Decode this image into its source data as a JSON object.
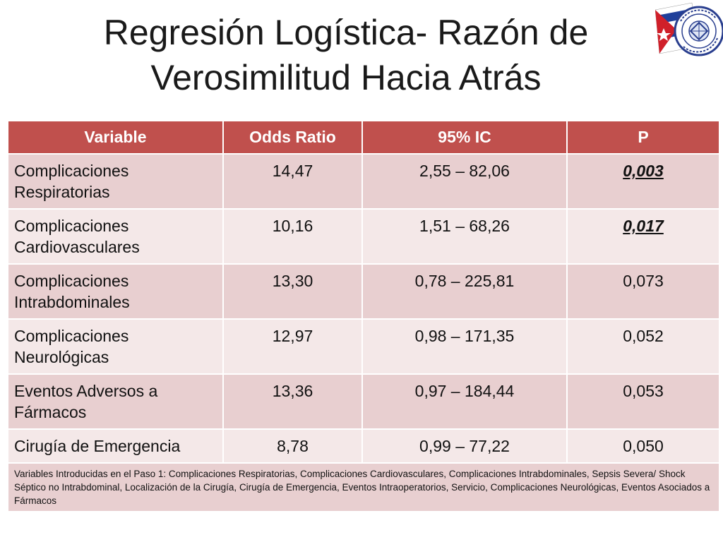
{
  "slide": {
    "title_line1": "Regresión Logística- Razón de",
    "title_line2": "Verosimilitud Hacia Atrás"
  },
  "table": {
    "headers": [
      "Variable",
      "Odds Ratio",
      "95% IC",
      "P"
    ],
    "rows": [
      {
        "variable_line1": "Complicaciones",
        "variable_line2": "Respiratorias",
        "odds_ratio": "14,47",
        "ic": "2,55 – 82,06",
        "p": "0,003",
        "significant": true
      },
      {
        "variable_line1": "Complicaciones",
        "variable_line2": "Cardiovasculares",
        "odds_ratio": "10,16",
        "ic": "1,51 – 68,26",
        "p": "0,017",
        "significant": true
      },
      {
        "variable_line1": "Complicaciones",
        "variable_line2": "Intrabdominales",
        "odds_ratio": "13,30",
        "ic": "0,78 – 225,81",
        "p": "0,073",
        "significant": false
      },
      {
        "variable_line1": "Complicaciones",
        "variable_line2": "Neurológicas",
        "odds_ratio": "12,97",
        "ic": "0,98 – 171,35",
        "p": "0,052",
        "significant": false
      },
      {
        "variable_line1": "Eventos Adversos a",
        "variable_line2": "Fármacos",
        "odds_ratio": "13,36",
        "ic": "0,97 – 184,44",
        "p": "0,053",
        "significant": false
      },
      {
        "variable_line1": "Cirugía de Emergencia",
        "variable_line2": "",
        "odds_ratio": "8,78",
        "ic": "0,99 – 77,22",
        "p": "0,050",
        "significant": false
      }
    ],
    "footnote": "Variables Introducidas en el Paso 1: Complicaciones Respiratorias, Complicaciones Cardiovasculares, Complicaciones Intrabdominales, Sepsis Severa/ Shock Séptico no Intrabdominal, Localización de la Cirugía, Cirugía de Emergencia, Eventos Intraoperatorios, Servicio, Complicaciones Neurológicas, Eventos Asociados a Fármacos"
  },
  "logo": {
    "icon": "institute-seal-icon",
    "colors": {
      "flag_blue": "#1f3f9a",
      "flag_red": "#d0202a",
      "seal_ring": "#2a3f8f"
    }
  }
}
